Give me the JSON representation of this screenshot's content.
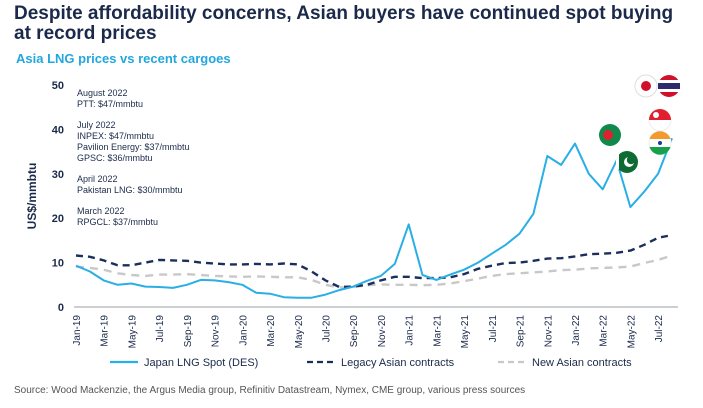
{
  "title": "Despite affordability concerns, Asian buyers have continued spot buying at record prices",
  "subtitle": "Asia LNG prices vs recent cargoes",
  "source": "Source: Wood Mackenzie, the Argus Media group, Refinitiv Datastream, Nymex, CME group, various press sources",
  "annotations": [
    {
      "date": "August 2022",
      "lines": [
        "PTT: $47/mmbtu"
      ]
    },
    {
      "date": "July 2022",
      "lines": [
        "INPEX: $47/mmbtu",
        "Pavilion Energy: $37/mmbtu",
        "GPSC: $36/mmbtu"
      ]
    },
    {
      "date": "April 2022",
      "lines": [
        "Pakistan LNG: $30/mmbtu"
      ]
    },
    {
      "date": "March 2022",
      "lines": [
        "RPGCL: $37/mmbtu"
      ]
    }
  ],
  "flags": [
    "japan-flag-icon",
    "thailand-flag-icon",
    "singapore-flag-icon",
    "india-flag-icon",
    "bangladesh-flag-icon",
    "pakistan-flag-icon"
  ],
  "chart_data": {
    "type": "line",
    "ylabel": "US$/mmbtu",
    "xlabel": "",
    "ylim": [
      0,
      50
    ],
    "yticks": [
      0,
      10,
      20,
      30,
      40,
      50
    ],
    "x": [
      "Jan-19",
      "Feb-19",
      "Mar-19",
      "Apr-19",
      "May-19",
      "Jun-19",
      "Jul-19",
      "Aug-19",
      "Sep-19",
      "Oct-19",
      "Nov-19",
      "Dec-19",
      "Jan-20",
      "Feb-20",
      "Mar-20",
      "Apr-20",
      "May-20",
      "Jun-20",
      "Jul-20",
      "Aug-20",
      "Sep-20",
      "Oct-20",
      "Nov-20",
      "Dec-20",
      "Jan-21",
      "Feb-21",
      "Mar-21",
      "Apr-21",
      "May-21",
      "Jun-21",
      "Jul-21",
      "Aug-21",
      "Sep-21",
      "Oct-21",
      "Nov-21",
      "Dec-21",
      "Jan-22",
      "Feb-22",
      "Mar-22",
      "Apr-22",
      "May-22",
      "Jun-22",
      "Jul-22",
      "Aug-22"
    ],
    "xtick_labels": [
      "Jan-19",
      "Mar-19",
      "May-19",
      "Jul-19",
      "Sep-19",
      "Nov-19",
      "Jan-20",
      "Mar-20",
      "May-20",
      "Jul-20",
      "Sep-20",
      "Nov-20",
      "Jan-21",
      "Mar-21",
      "May-21",
      "Jul-21",
      "Sep-21",
      "Nov-21",
      "Jan-22",
      "Mar-22",
      "May-22",
      "Jul-22"
    ],
    "series": [
      {
        "name": "Japan LNG Spot (DES)",
        "style": "solid",
        "color": "#29aee6",
        "values": [
          9.3,
          8.0,
          6.0,
          5.0,
          5.3,
          4.6,
          4.5,
          4.3,
          5.0,
          6.1,
          6.0,
          5.6,
          5.0,
          3.2,
          3.0,
          2.2,
          2.1,
          2.1,
          2.8,
          3.8,
          4.6,
          5.9,
          7.0,
          9.7,
          18.6,
          7.2,
          6.1,
          7.3,
          8.4,
          10.0,
          12.0,
          14.0,
          16.5,
          21.0,
          34.0,
          32.0,
          36.8,
          30.0,
          26.5,
          33.0,
          22.5,
          26.0,
          30.0,
          38.0
        ]
      },
      {
        "name": "Legacy Asian contracts",
        "style": "dashed",
        "color": "#1b2f5c",
        "values": [
          11.6,
          11.3,
          10.5,
          9.4,
          9.4,
          10.0,
          10.6,
          10.5,
          10.4,
          10.0,
          9.8,
          9.6,
          9.6,
          9.7,
          9.6,
          9.8,
          9.6,
          8.0,
          6.0,
          4.5,
          4.6,
          5.0,
          6.0,
          6.8,
          6.8,
          6.5,
          6.5,
          6.7,
          7.4,
          8.6,
          9.3,
          9.9,
          10.0,
          10.4,
          10.9,
          11.0,
          11.4,
          11.9,
          12.0,
          12.2,
          12.7,
          14.0,
          15.6,
          16.2
        ]
      },
      {
        "name": "New Asian contracts",
        "style": "dashed",
        "color": "#c8c8c8",
        "values": [
          9.1,
          8.8,
          8.4,
          7.6,
          7.2,
          7.0,
          7.3,
          7.3,
          7.4,
          7.2,
          7.0,
          6.9,
          6.8,
          6.9,
          6.8,
          6.7,
          6.7,
          6.1,
          5.0,
          4.4,
          4.5,
          4.9,
          5.1,
          5.0,
          5.0,
          4.9,
          5.0,
          5.3,
          5.8,
          6.4,
          7.0,
          7.4,
          7.6,
          7.8,
          8.0,
          8.3,
          8.4,
          8.7,
          8.8,
          8.9,
          9.1,
          9.9,
          10.6,
          11.6
        ]
      }
    ],
    "legend_position": "bottom",
    "grid": false
  }
}
